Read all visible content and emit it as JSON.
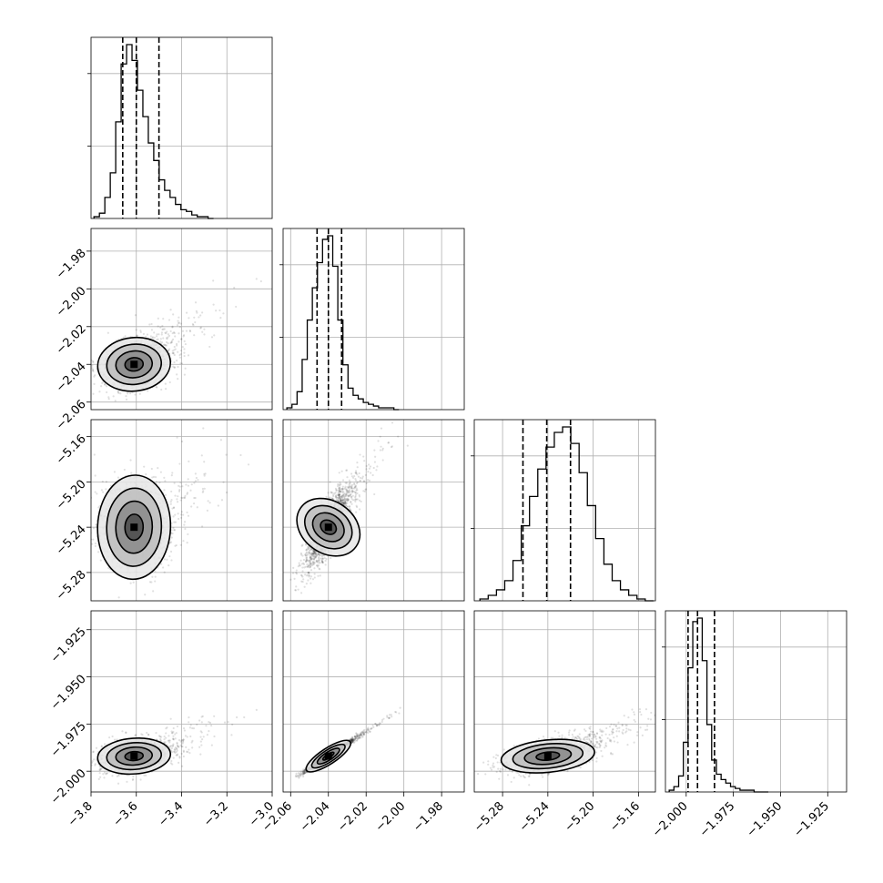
{
  "chart_data": {
    "type": "corner",
    "parameters": [
      {
        "range": [
          -3.8,
          -3.0
        ],
        "ticks": [
          "-3.8",
          "-3.6",
          "-3.4",
          "-3.2",
          "-3.0"
        ],
        "tick_values": [
          -3.8,
          -3.6,
          -3.4,
          -3.2,
          -3.0
        ],
        "center": -3.61,
        "sd": 0.07,
        "quantiles": [
          -3.66,
          -3.6,
          -3.5
        ]
      },
      {
        "range": [
          -2.064,
          -1.968
        ],
        "ticks": [
          "-2.06",
          "-2.04",
          "-2.02",
          "-2.00",
          "-1.98"
        ],
        "tick_values": [
          -2.06,
          -2.04,
          -2.02,
          -2.0,
          -1.98
        ],
        "center": -2.04,
        "sd": 0.006,
        "quantiles": [
          -2.046,
          -2.04,
          -2.033
        ]
      },
      {
        "range": [
          -5.305,
          -5.145
        ],
        "ticks": [
          "-5.28",
          "-5.24",
          "-5.20",
          "-5.16"
        ],
        "tick_values": [
          -5.28,
          -5.24,
          -5.2,
          -5.16
        ],
        "center": -5.24,
        "sd": 0.018,
        "quantiles": [
          -5.262,
          -5.241,
          -5.22
        ]
      },
      {
        "range": [
          -2.011,
          -1.915
        ],
        "ticks": [
          "-2.000",
          "-1.975",
          "-1.950",
          "-1.925"
        ],
        "tick_values": [
          -2.0,
          -1.975,
          -1.95,
          -1.925
        ],
        "center": -1.992,
        "sd": 0.004,
        "quantiles": [
          -1.999,
          -1.994,
          -1.985
        ]
      }
    ],
    "histograms": [
      {
        "param": 0,
        "bins": [
          -3.787,
          -3.763,
          -3.739,
          -3.715,
          -3.691,
          -3.667,
          -3.643,
          -3.619,
          -3.595,
          -3.571,
          -3.547,
          -3.523,
          -3.499,
          -3.475,
          -3.451,
          -3.427,
          -3.403,
          -3.379,
          -3.355,
          -3.331,
          -3.307,
          -3.283
        ],
        "counts": [
          1,
          3,
          12,
          26,
          55,
          88,
          99,
          90,
          73,
          58,
          43,
          33,
          22,
          16,
          12,
          8,
          5,
          4,
          2,
          1,
          1,
          0
        ]
      },
      {
        "param": 1,
        "bins": [
          -2.062,
          -2.0593,
          -2.0566,
          -2.0539,
          -2.0512,
          -2.0485,
          -2.0458,
          -2.0431,
          -2.0404,
          -2.0377,
          -2.035,
          -2.0323,
          -2.0296,
          -2.0269,
          -2.0242,
          -2.0215,
          -2.0188,
          -2.0161,
          -2.0134,
          -2.0107,
          -2.008,
          -2.0053
        ],
        "counts": [
          1,
          3,
          10,
          28,
          50,
          68,
          82,
          95,
          97,
          80,
          50,
          25,
          12,
          8,
          6,
          4,
          3,
          2,
          1,
          1,
          1,
          0
        ]
      },
      {
        "param": 2,
        "bins": [
          -5.3,
          -5.2927,
          -5.2854,
          -5.2781,
          -5.2708,
          -5.2635,
          -5.2562,
          -5.2489,
          -5.2416,
          -5.2343,
          -5.227,
          -5.2197,
          -5.2124,
          -5.2051,
          -5.1978,
          -5.1905,
          -5.1832,
          -5.1759,
          -5.1686,
          -5.1613,
          -5.154
        ],
        "counts": [
          1,
          3,
          6,
          11,
          22,
          41,
          57,
          72,
          84,
          92,
          95,
          86,
          70,
          52,
          34,
          20,
          11,
          6,
          3,
          1,
          0
        ]
      },
      {
        "param": 3,
        "bins": [
          -2.009,
          -2.0065,
          -2.004,
          -2.0015,
          -1.999,
          -1.9965,
          -1.994,
          -1.9915,
          -1.989,
          -1.9865,
          -1.984,
          -1.9815,
          -1.979,
          -1.9765,
          -1.974,
          -1.9715,
          -1.969,
          -1.9665,
          -1.964,
          -1.9615,
          -1.959
        ],
        "counts": [
          1,
          3,
          9,
          28,
          70,
          96,
          98,
          74,
          38,
          18,
          10,
          7,
          5,
          3,
          2,
          1,
          1,
          1,
          0,
          0,
          0
        ]
      }
    ],
    "scatter_pairs": [
      {
        "x_param": 0,
        "y_param": 1,
        "cov": 0.25,
        "points": 2000
      },
      {
        "x_param": 0,
        "y_param": 2,
        "cov": -0.05,
        "points": 2000
      },
      {
        "x_param": 1,
        "y_param": 2,
        "cov": 0.8,
        "points": 2000
      },
      {
        "x_param": 0,
        "y_param": 3,
        "cov": 0.25,
        "points": 2000
      },
      {
        "x_param": 1,
        "y_param": 3,
        "cov": 0.98,
        "points": 2000
      },
      {
        "x_param": 2,
        "y_param": 3,
        "cov": 0.45,
        "points": 2000
      }
    ],
    "contour_levels": [
      "0.5",
      "1.0",
      "1.5",
      "2.0"
    ],
    "grid": true,
    "xlabel": "",
    "ylabel": "",
    "title": ""
  }
}
